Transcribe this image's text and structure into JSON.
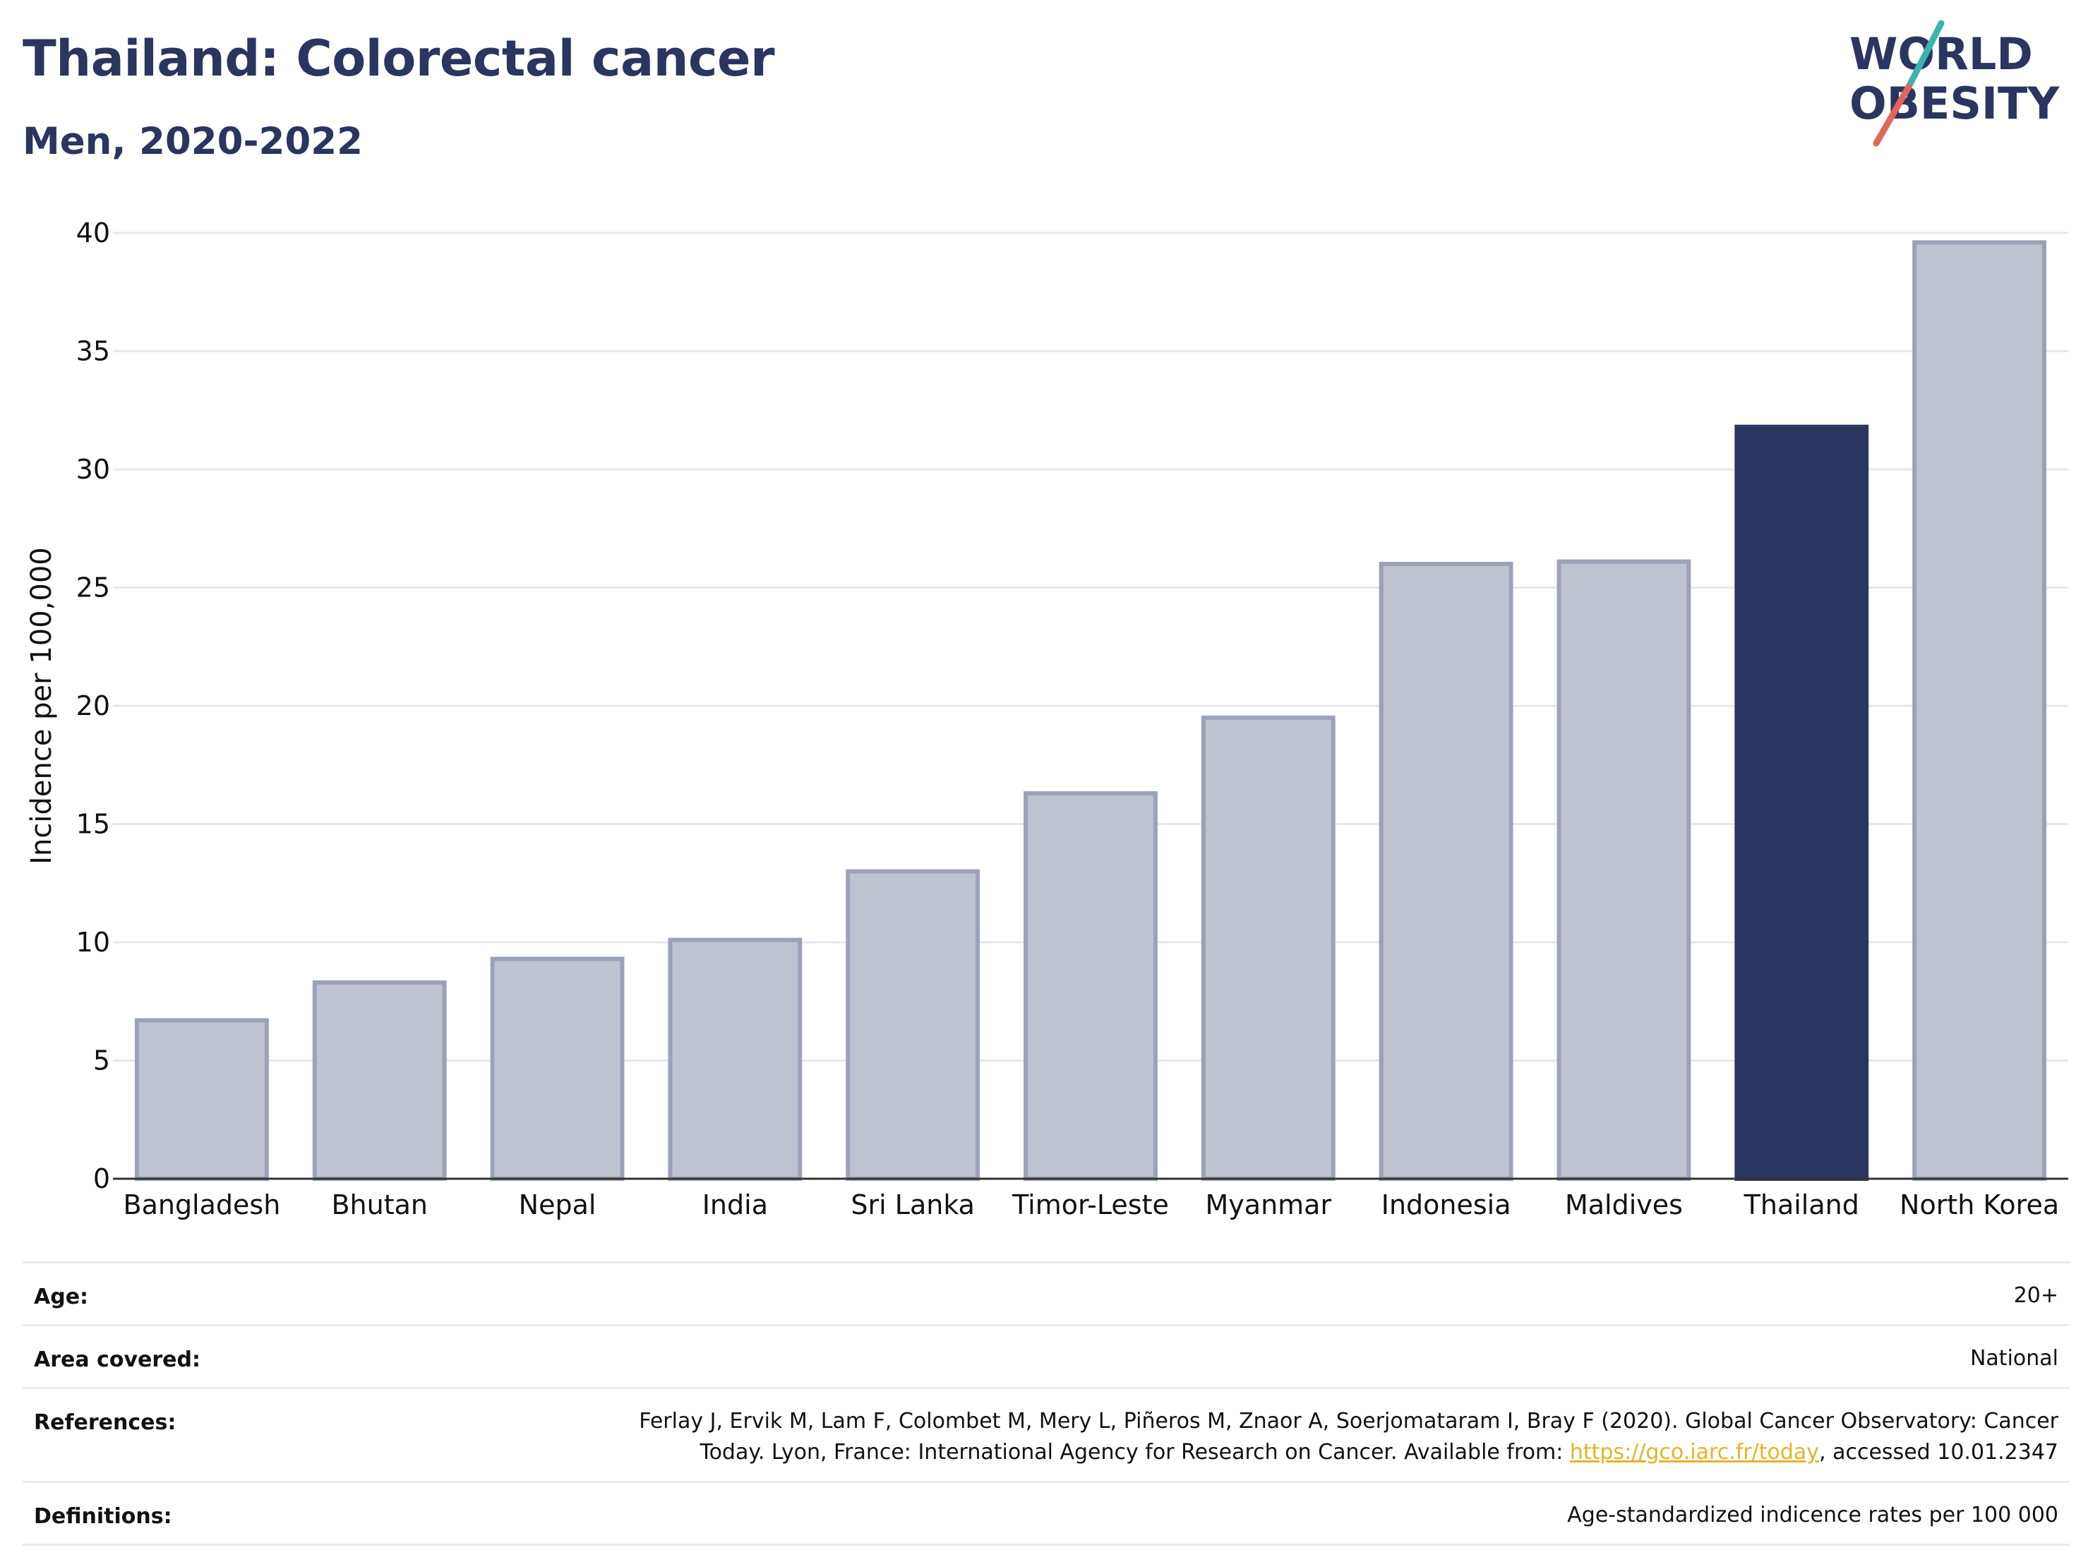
{
  "title": "Thailand: Colorectal cancer",
  "subtitle": "Men, 2020-2022",
  "logo": {
    "line1": "WORLD",
    "line2": "OBESITY",
    "icon": "world-obesity-logo"
  },
  "colors": {
    "highlight": "#2a3560",
    "bar": "#bfc3d0",
    "bar_border": "#9ba2b8",
    "logo_slash_top": "#3ab5b0",
    "logo_slash_bottom": "#e2665a"
  },
  "chart_data": {
    "type": "bar",
    "categories": [
      "Bangladesh",
      "Bhutan",
      "Nepal",
      "India",
      "Sri Lanka",
      "Timor-Leste",
      "Myanmar",
      "Indonesia",
      "Maldives",
      "Thailand",
      "North Korea"
    ],
    "values": [
      6.7,
      8.3,
      9.3,
      10.1,
      13.0,
      16.3,
      19.5,
      26.0,
      26.1,
      31.8,
      39.6
    ],
    "highlight": "Thailand",
    "ylabel": "Incidence per 100,000",
    "xlabel": "",
    "ylim": [
      0,
      40
    ],
    "yticks": [
      0,
      5,
      10,
      15,
      20,
      25,
      30,
      35,
      40
    ],
    "grid": true
  },
  "meta": [
    {
      "label": "Age:",
      "value": "20+"
    },
    {
      "label": "Area covered:",
      "value": "National"
    },
    {
      "label": "References:",
      "value_line1": "Ferlay J, Ervik M, Lam F, Colombet M, Mery L, Piñeros M, Znaor A, Soerjomataram I, Bray F (2020). Global Cancer Observatory: Cancer",
      "value_line2_pre": "Today. Lyon, France: International Agency for Research on Cancer. Available from: ",
      "link": "https://gco.iarc.fr/today",
      "value_line2_post": ", accessed 10.01.2347"
    },
    {
      "label": "Definitions:",
      "value": "Age-standardized indicence rates per 100 000"
    }
  ]
}
